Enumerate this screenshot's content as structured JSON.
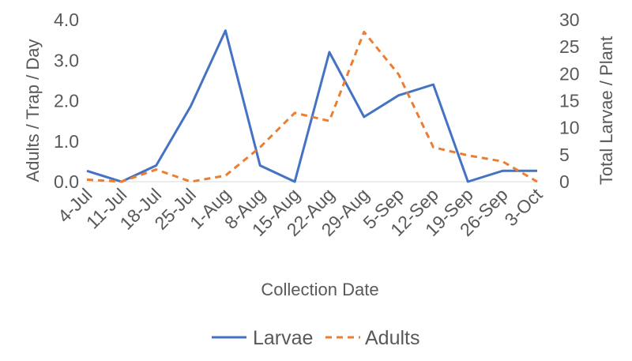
{
  "chart_data": {
    "type": "line",
    "title": "",
    "xlabel": "Collection Date",
    "ylabel_left": "Adults / Trap / Day",
    "ylabel_right": "Total Larvae / Plant",
    "categories": [
      "4-Jul",
      "11-Jul",
      "18-Jul",
      "25-Jul",
      "1-Aug",
      "8-Aug",
      "15-Aug",
      "22-Aug",
      "29-Aug",
      "5-Sep",
      "12-Sep",
      "19-Sep",
      "26-Sep",
      "3-Oct"
    ],
    "y_left": {
      "min": 0,
      "max": 4,
      "ticks": [
        "0.0",
        "1.0",
        "2.0",
        "3.0",
        "4.0"
      ]
    },
    "y_right": {
      "min": 0,
      "max": 30,
      "ticks": [
        "0",
        "5",
        "10",
        "15",
        "20",
        "25",
        "30"
      ]
    },
    "series": [
      {
        "name": "Larvae",
        "axis": "right",
        "color": "#4472C4",
        "dash": "solid",
        "values": [
          2,
          0,
          3,
          14,
          28,
          3,
          0,
          24,
          12,
          16,
          18,
          0,
          2,
          2
        ]
      },
      {
        "name": "Adults",
        "axis": "left",
        "color": "#ED7D31",
        "dash": "dashed",
        "values": [
          0.05,
          0,
          0.3,
          0,
          0.15,
          0.85,
          1.7,
          1.5,
          3.7,
          2.65,
          0.85,
          0.65,
          0.5,
          0
        ]
      }
    ],
    "grid": false,
    "legend": "bottom"
  }
}
